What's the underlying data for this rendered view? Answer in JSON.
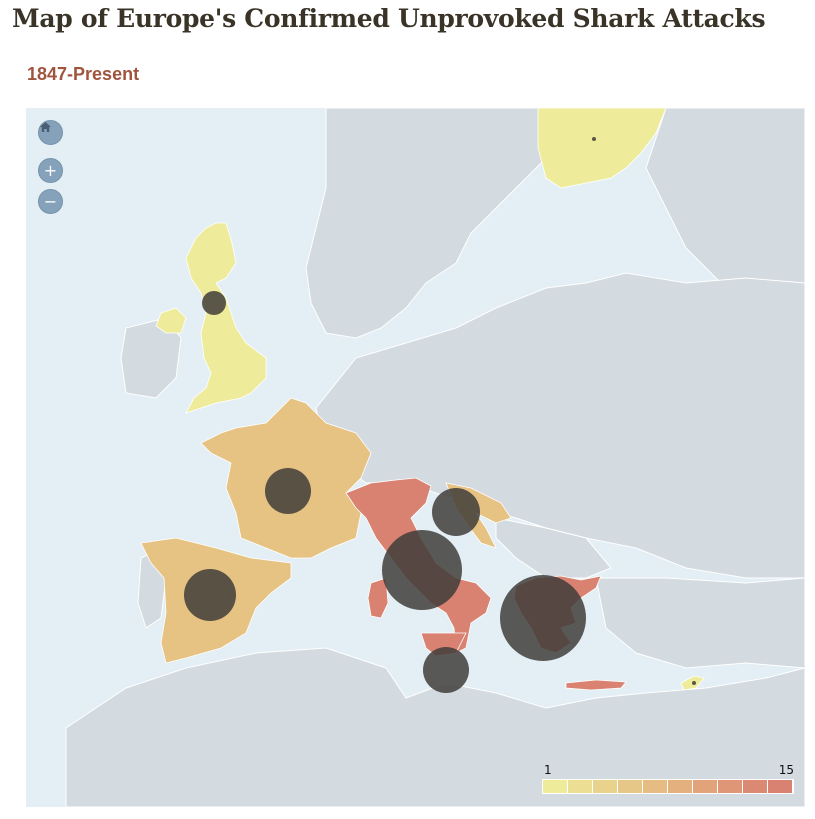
{
  "page": {
    "title": "Map of Europe's Confirmed Unprovoked Shark Attacks",
    "subtitle": "1847-Present"
  },
  "map_controls": {
    "home_icon": "house-icon",
    "zoom_in_label": "+",
    "zoom_out_label": "−"
  },
  "colors": {
    "sea": "#e3eff4",
    "land": "#d3dae0",
    "border": "#ffffff",
    "bubble": "#3f3d3a",
    "scale_low": "#eeeb9a",
    "scale_mid": "#e6c283",
    "scale_high": "#d98272"
  },
  "legend": {
    "min_label": "1",
    "max_label": "15",
    "swatches": [
      "#eeeb9a",
      "#ecdf93",
      "#e9d28c",
      "#e7c787",
      "#e6bc82",
      "#e4b07e",
      "#e2a37a",
      "#df9676",
      "#dc8974",
      "#d98272"
    ]
  },
  "chart_data": {
    "type": "choropleth",
    "title": "Map of Europe's Confirmed Unprovoked Shark Attacks",
    "subtitle": "1847-Present",
    "scale_range": [
      1,
      15
    ],
    "countries": [
      {
        "name": "United Kingdom",
        "level": 1
      },
      {
        "name": "Sweden",
        "level": 1
      },
      {
        "name": "Cyprus",
        "level": 1
      },
      {
        "name": "France",
        "level": 4
      },
      {
        "name": "Spain",
        "level": 4
      },
      {
        "name": "Croatia",
        "level": 4
      },
      {
        "name": "Italy",
        "level": 15
      },
      {
        "name": "Greece",
        "level": 15
      }
    ],
    "bubbles": [
      {
        "location": "Scotland",
        "size": "small"
      },
      {
        "location": "France",
        "size": "medium"
      },
      {
        "location": "Spain",
        "size": "medium-large"
      },
      {
        "location": "Croatia",
        "size": "medium"
      },
      {
        "location": "Italy (Tyrrhenian coast)",
        "size": "large"
      },
      {
        "location": "Sicily",
        "size": "medium"
      },
      {
        "location": "Greece",
        "size": "largest"
      },
      {
        "location": "Sweden",
        "size": "tiny"
      },
      {
        "location": "Cyprus",
        "size": "tiny"
      }
    ]
  }
}
